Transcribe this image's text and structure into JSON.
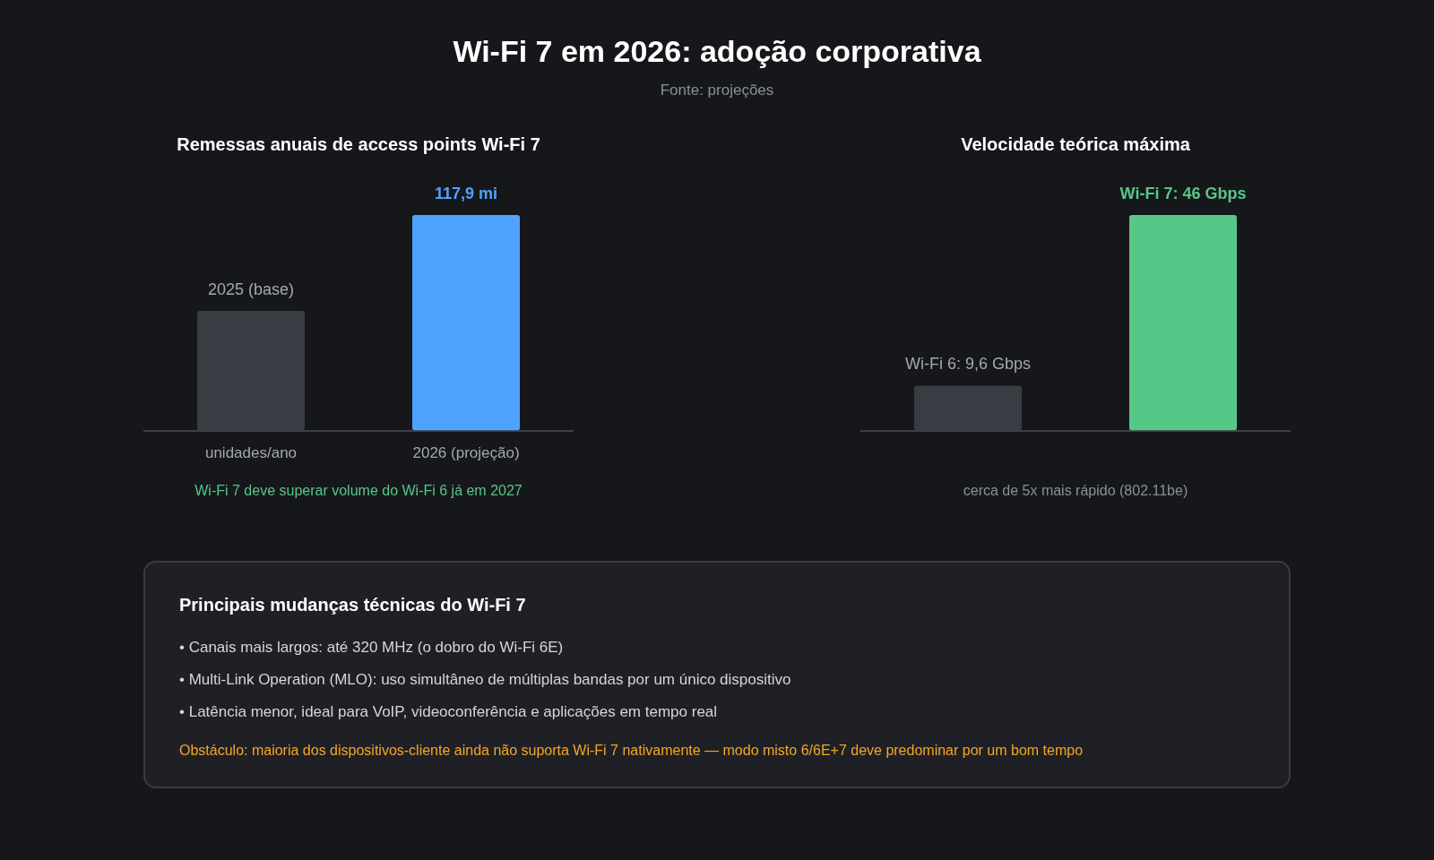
{
  "chart_data": [
    {
      "type": "other",
      "title": "Wi-Fi 7 em 2026: adoção corporativa",
      "subtitle": "Fonte: projeções"
    },
    {
      "type": "bar",
      "title": "Remessas anuais de access points Wi-Fi 7",
      "categories": [
        "unidades/ano",
        "2026 (projeção)"
      ],
      "values": [
        65.5,
        117.9
      ],
      "colors": [
        "#3a3c44",
        "#4fa3ff"
      ],
      "value_labels": [
        null,
        "117,9 mi"
      ],
      "annotations": [
        {
          "text": "2025 (base)",
          "x": "unidades/ano",
          "y": 65.5
        },
        "Wi-Fi 7 deve superar volume do Wi-Fi 6 já em 2027"
      ],
      "legend": false
    },
    {
      "type": "bar",
      "title": "Velocidade teórica máxima",
      "categories": [
        null,
        null
      ],
      "values": [
        9.6,
        46
      ],
      "colors": [
        "#3a3c44",
        "#56c787"
      ],
      "value_labels": [
        "Wi-Fi 6: 9,6 Gbps",
        "Wi-Fi 7: 46 Gbps"
      ],
      "annotations": [
        "cerca de 5x mais rápido (802.11be)"
      ],
      "legend": false
    },
    {
      "type": "other",
      "title": "Principais mudanças técnicas do Wi-Fi 7",
      "annotations": [
        "• Canais mais largos: até 320 MHz (o dobro do Wi-Fi 6E)",
        "• Multi-Link Operation (MLO): uso simultâneo de múltiplas bandas por um único dispositivo",
        "• Latência menor, ideal para VoIP, videoconferência e aplicações em tempo real",
        "Obstáculo: maioria dos dispositivos-cliente ainda não suporta Wi-Fi 7 nativamente — modo misto 6/6E+7 deve predominar por um bom tempo"
      ]
    }
  ]
}
